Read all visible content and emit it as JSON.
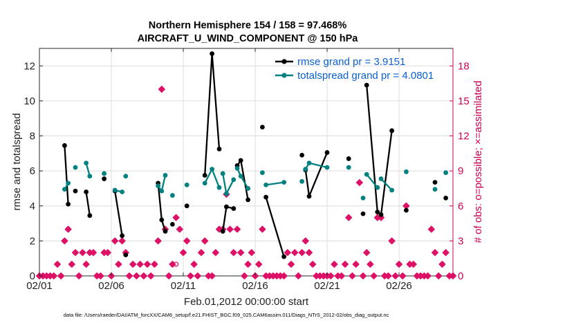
{
  "chart_data": {
    "type": "line",
    "title_line1": "Northern Hemisphere 154 / 158 = 97.468%",
    "title_line2": "AIRCRAFT_U_WIND_COMPONENT @ 150 hPa",
    "xlabel": "Feb.01,2012 00:00:00 start",
    "ylabel_left": "rmse and totalspread",
    "ylabel_right": "# of obs: o=possible; ×=assimilated",
    "footer": "data file: /Users/raeder/DAI/ATM_forcXX/CAM6_setup/f.e21.FHIST_BGC.f09_025.CAM6assim.011/Diags_NTrS_2012-02/obs_diag_output.nc",
    "xlim": [
      1,
      29.75
    ],
    "ylim_left": [
      0,
      13
    ],
    "ylim_right": [
      0,
      19.5
    ],
    "x_ticks": [
      1,
      6,
      11,
      16,
      21,
      26
    ],
    "x_tick_labels": [
      "02/01",
      "02/06",
      "02/11",
      "02/16",
      "02/21",
      "02/26"
    ],
    "y_left_ticks": [
      0,
      2,
      4,
      6,
      8,
      10,
      12
    ],
    "y_right_ticks": [
      0,
      3,
      6,
      9,
      12,
      15,
      18
    ],
    "grid": true,
    "legend_position": "top-right",
    "colors": {
      "rmse": "#000000",
      "spread": "#00807f",
      "obs": "#dd1166",
      "right_axis": "#cc0055",
      "legend_text": "#0a5fd1"
    },
    "series": [
      {
        "name": "rmse grand pr = 3.9151",
        "color": "#000000",
        "points": [
          [
            2.75,
            7.45
          ],
          [
            3.0,
            4.1
          ],
          [
            3.5,
            4.85
          ],
          [
            4.25,
            4.8
          ],
          [
            4.5,
            3.45
          ],
          [
            5.5,
            5.55
          ],
          [
            6.25,
            4.85
          ],
          [
            6.75,
            2.3
          ],
          [
            7.0,
            1.2
          ],
          [
            9.25,
            5.3
          ],
          [
            9.5,
            3.2
          ],
          [
            9.75,
            2.55
          ],
          [
            10.25,
            2.95
          ],
          [
            11.25,
            4.0
          ],
          [
            12.5,
            5.75
          ],
          [
            13.0,
            12.7
          ],
          [
            13.5,
            7.25
          ],
          [
            13.75,
            2.55
          ],
          [
            14.0,
            3.95
          ],
          [
            14.5,
            3.85
          ],
          [
            14.75,
            6.3
          ],
          [
            15.0,
            6.6
          ],
          [
            15.5,
            4.35
          ],
          [
            16.5,
            8.5
          ],
          [
            16.75,
            4.5
          ],
          [
            18.0,
            1.1
          ],
          [
            19.25,
            6.9
          ],
          [
            19.5,
            6.05
          ],
          [
            19.75,
            4.55
          ],
          [
            21.0,
            7.05
          ],
          [
            22.5,
            6.7
          ],
          [
            23.5,
            3.55
          ],
          [
            23.75,
            10.9
          ],
          [
            24.5,
            3.65
          ],
          [
            24.75,
            3.5
          ],
          [
            25.5,
            8.3
          ],
          [
            26.5,
            3.75
          ],
          [
            28.5,
            5.35
          ],
          [
            29.25,
            4.45
          ]
        ],
        "segments": [
          [
            0,
            1
          ],
          [
            3,
            4
          ],
          [
            6,
            7
          ],
          [
            9,
            10,
            11
          ],
          [
            14,
            15,
            16
          ],
          [
            17,
            18,
            19
          ],
          [
            20,
            21,
            22
          ],
          [
            24,
            25
          ],
          [
            27,
            28,
            29
          ],
          [
            32,
            33
          ],
          [
            34,
            35
          ]
        ]
      },
      {
        "name": "totalspread grand pr = 4.0801",
        "color": "#00807f",
        "points": [
          [
            2.75,
            4.95
          ],
          [
            3.0,
            5.3
          ],
          [
            3.5,
            6.2
          ],
          [
            4.25,
            6.45
          ],
          [
            4.5,
            5.7
          ],
          [
            5.5,
            5.85
          ],
          [
            6.25,
            4.9
          ],
          [
            6.75,
            4.8
          ],
          [
            7.0,
            5.7
          ],
          [
            9.25,
            5.15
          ],
          [
            9.5,
            4.85
          ],
          [
            9.75,
            5.75
          ],
          [
            10.25,
            4.6
          ],
          [
            11.25,
            5.2
          ],
          [
            12.5,
            5.3
          ],
          [
            13.0,
            6.1
          ],
          [
            13.5,
            5.05
          ],
          [
            13.75,
            5.85
          ],
          [
            14.0,
            4.7
          ],
          [
            14.5,
            5.5
          ],
          [
            14.75,
            6.15
          ],
          [
            15.0,
            5.7
          ],
          [
            15.5,
            5.0
          ],
          [
            16.5,
            5.9
          ],
          [
            16.75,
            5.2
          ],
          [
            18.0,
            5.35
          ],
          [
            19.25,
            5.4
          ],
          [
            19.5,
            6.1
          ],
          [
            19.75,
            6.45
          ],
          [
            21.0,
            6.2
          ],
          [
            22.5,
            6.2
          ],
          [
            23.5,
            4.45
          ],
          [
            23.75,
            5.8
          ],
          [
            24.5,
            5.05
          ],
          [
            24.75,
            5.55
          ],
          [
            25.5,
            4.9
          ],
          [
            26.5,
            5.95
          ],
          [
            28.5,
            4.95
          ],
          [
            29.25,
            5.9
          ]
        ],
        "segments": [
          [
            0,
            1
          ],
          [
            3,
            4
          ],
          [
            6,
            7
          ],
          [
            9,
            10,
            11
          ],
          [
            14,
            15,
            16
          ],
          [
            17,
            18,
            19
          ],
          [
            20,
            21,
            22
          ],
          [
            24,
            25
          ],
          [
            27,
            28,
            29
          ],
          [
            32,
            33
          ],
          [
            34,
            35
          ]
        ]
      }
    ],
    "obs_assimilated": [
      [
        1.0,
        0
      ],
      [
        1.25,
        0
      ],
      [
        1.5,
        0
      ],
      [
        1.75,
        0
      ],
      [
        2.0,
        0
      ],
      [
        2.25,
        1
      ],
      [
        2.5,
        0
      ],
      [
        2.75,
        3
      ],
      [
        3.0,
        4
      ],
      [
        3.25,
        1
      ],
      [
        3.5,
        2
      ],
      [
        3.75,
        0
      ],
      [
        4.0,
        2
      ],
      [
        4.25,
        1
      ],
      [
        4.5,
        2
      ],
      [
        4.75,
        2
      ],
      [
        5.0,
        0
      ],
      [
        5.25,
        0
      ],
      [
        5.5,
        2
      ],
      [
        5.75,
        2
      ],
      [
        6.0,
        0
      ],
      [
        6.25,
        3
      ],
      [
        6.5,
        1
      ],
      [
        6.75,
        3
      ],
      [
        7.0,
        2
      ],
      [
        7.25,
        0
      ],
      [
        7.5,
        1
      ],
      [
        7.75,
        0
      ],
      [
        8.0,
        1
      ],
      [
        8.25,
        0
      ],
      [
        8.5,
        1
      ],
      [
        8.75,
        0
      ],
      [
        9.0,
        1
      ],
      [
        9.25,
        3
      ],
      [
        9.5,
        16
      ],
      [
        9.75,
        4
      ],
      [
        10.0,
        0
      ],
      [
        10.25,
        1
      ],
      [
        10.5,
        5
      ],
      [
        10.75,
        4
      ],
      [
        11.0,
        2
      ],
      [
        11.25,
        3
      ],
      [
        11.5,
        0
      ],
      [
        11.75,
        1
      ],
      [
        12.0,
        0
      ],
      [
        12.25,
        2
      ],
      [
        12.5,
        3
      ],
      [
        12.75,
        0
      ],
      [
        13.0,
        0
      ],
      [
        13.25,
        2
      ],
      [
        13.5,
        4
      ],
      [
        13.75,
        4
      ],
      [
        14.0,
        7
      ],
      [
        14.25,
        4
      ],
      [
        14.5,
        2
      ],
      [
        14.75,
        4
      ],
      [
        15.0,
        2
      ],
      [
        15.25,
        0
      ],
      [
        15.5,
        1
      ],
      [
        15.75,
        2
      ],
      [
        16.0,
        0
      ],
      [
        16.25,
        1
      ],
      [
        16.5,
        4
      ],
      [
        16.75,
        0
      ],
      [
        17.0,
        0
      ],
      [
        17.25,
        0
      ],
      [
        17.5,
        0
      ],
      [
        17.75,
        0
      ],
      [
        18.0,
        0
      ],
      [
        18.25,
        2
      ],
      [
        18.5,
        1
      ],
      [
        18.75,
        2
      ],
      [
        19.0,
        0
      ],
      [
        19.25,
        2
      ],
      [
        19.5,
        3
      ],
      [
        19.75,
        2
      ],
      [
        20.0,
        1
      ],
      [
        20.25,
        0
      ],
      [
        20.5,
        0
      ],
      [
        20.75,
        0
      ],
      [
        21.0,
        0
      ],
      [
        21.25,
        0
      ],
      [
        21.5,
        1
      ],
      [
        21.75,
        0
      ],
      [
        22.0,
        0
      ],
      [
        22.25,
        1
      ],
      [
        22.5,
        5
      ],
      [
        22.75,
        0
      ],
      [
        23.0,
        1
      ],
      [
        23.25,
        8
      ],
      [
        23.5,
        0
      ],
      [
        23.75,
        2
      ],
      [
        24.0,
        1
      ],
      [
        24.25,
        0
      ],
      [
        24.5,
        5
      ],
      [
        24.75,
        5
      ],
      [
        25.0,
        0
      ],
      [
        25.25,
        0
      ],
      [
        25.5,
        3
      ],
      [
        25.75,
        0
      ],
      [
        26.0,
        1
      ],
      [
        26.25,
        0
      ],
      [
        26.5,
        6
      ],
      [
        26.75,
        1
      ],
      [
        27.0,
        1
      ],
      [
        27.25,
        0
      ],
      [
        27.5,
        0
      ],
      [
        27.75,
        0
      ],
      [
        28.0,
        0
      ],
      [
        28.25,
        4
      ],
      [
        28.5,
        2
      ],
      [
        28.75,
        0
      ],
      [
        29.0,
        1
      ],
      [
        29.25,
        2
      ],
      [
        29.5,
        0
      ],
      [
        29.75,
        0
      ]
    ],
    "obs_possible": [
      [
        10.5,
        1
      ],
      [
        26.75,
        1
      ]
    ]
  }
}
